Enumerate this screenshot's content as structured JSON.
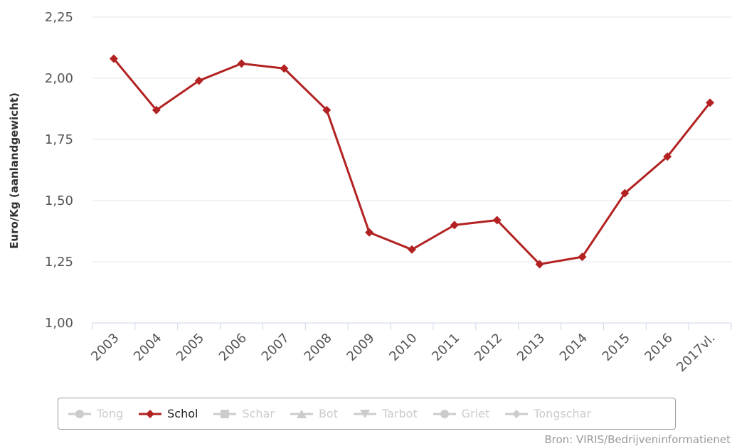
{
  "chart_data": {
    "type": "line",
    "categories": [
      "2003",
      "2004",
      "2005",
      "2006",
      "2007",
      "2008",
      "2009",
      "2010",
      "2011",
      "2012",
      "2013",
      "2014",
      "2015",
      "2016",
      "2017vl."
    ],
    "series": [
      {
        "name": "Schol",
        "color": "#b22222",
        "marker": "diamond",
        "values": [
          2.08,
          1.87,
          1.99,
          2.06,
          2.04,
          1.87,
          1.37,
          1.3,
          1.4,
          1.42,
          1.24,
          1.27,
          1.53,
          1.68,
          1.9
        ]
      }
    ],
    "ylabel": "Euro/Kg (aanlandgewicht)",
    "xlabel": "",
    "title": "",
    "ylim": [
      1.0,
      2.25
    ],
    "yticks": [
      "1,00",
      "1,25",
      "1,50",
      "1,75",
      "2,00",
      "2,25"
    ],
    "ytick_values": [
      1.0,
      1.25,
      1.5,
      1.75,
      2.0,
      2.25
    ],
    "grid": true,
    "legend_position": "bottom"
  },
  "legend": {
    "items": [
      {
        "label": "Tong",
        "marker": "circle",
        "active": false
      },
      {
        "label": "Schol",
        "marker": "diamond",
        "active": true
      },
      {
        "label": "Schar",
        "marker": "square",
        "active": false
      },
      {
        "label": "Bot",
        "marker": "triangle",
        "active": false
      },
      {
        "label": "Tarbot",
        "marker": "triangle-down",
        "active": false
      },
      {
        "label": "Griet",
        "marker": "circle",
        "active": false
      },
      {
        "label": "Tongschar",
        "marker": "diamond",
        "active": false
      }
    ],
    "active_color": "#b22222",
    "inactive_color": "#cccccc"
  },
  "credit": "Bron: VIRIS/Bedrijveninformatienet"
}
